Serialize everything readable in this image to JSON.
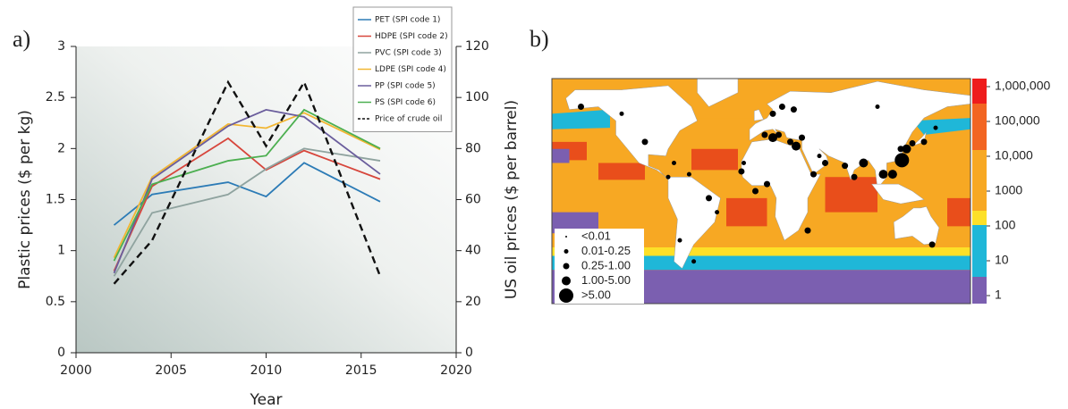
{
  "chart_data": [
    {
      "type": "line",
      "panel_label": "a)",
      "x": [
        2002,
        2004,
        2008,
        2010,
        2012,
        2016
      ],
      "xlim": [
        2000,
        2020
      ],
      "xticks": [
        2000,
        2005,
        2010,
        2015,
        2020
      ],
      "ylim": [
        0,
        3
      ],
      "yticks": [
        0,
        0.5,
        1,
        1.5,
        2,
        2.5,
        3
      ],
      "y2lim": [
        0,
        120
      ],
      "y2ticks": [
        0,
        20,
        40,
        60,
        80,
        100,
        120
      ],
      "xlabel": "Year",
      "ylabel": "Plastic prices ($ per kg)",
      "y2label": "US oil prices ($ per barrel)",
      "legend": "upper-right",
      "series": [
        {
          "name": "PET (SPI code 1)",
          "color": "#2c7bb6",
          "values": [
            1.25,
            1.55,
            1.67,
            1.53,
            1.86,
            1.48
          ]
        },
        {
          "name": "HDPE (SPI code 2)",
          "color": "#d7463c",
          "values": [
            0.8,
            1.63,
            2.1,
            1.79,
            1.98,
            1.7
          ]
        },
        {
          "name": "PVC (SPI code 3)",
          "color": "#8fa39f",
          "values": [
            0.75,
            1.37,
            1.55,
            1.8,
            2.0,
            1.88
          ]
        },
        {
          "name": "LDPE (SPI code 4)",
          "color": "#f2b632",
          "values": [
            0.93,
            1.72,
            2.24,
            2.2,
            2.35,
            1.99
          ]
        },
        {
          "name": "PP (SPI code 5)",
          "color": "#6a5d9c",
          "values": [
            0.78,
            1.7,
            2.22,
            2.38,
            2.31,
            1.75
          ]
        },
        {
          "name": "PS (SPI code 6)",
          "color": "#4caf50",
          "values": [
            0.9,
            1.65,
            1.88,
            1.93,
            2.38,
            2.0
          ]
        },
        {
          "name": "Price of crude oil",
          "color": "#111111",
          "dashed": true,
          "axis": "y2",
          "values": [
            27,
            44,
            106,
            81,
            106,
            30
          ]
        }
      ]
    },
    {
      "type": "map",
      "panel_label": "b)",
      "colorbar_log": true,
      "colorbar_ticks": [
        1,
        10,
        100,
        1000,
        {
          "value": 10000,
          "label": "10,000"
        },
        {
          "value": 100000,
          "label": "100,000"
        },
        {
          "value": 1000000,
          "label": "1,000,000"
        }
      ],
      "size_legend": [
        "<0.01",
        "0.01-0.25",
        "0.25-1.00",
        "1.00-5.00",
        ">5.00"
      ],
      "points": {
        "lon": [
          -155,
          -120,
          -100,
          -80,
          -75,
          -62,
          -45,
          -38,
          -70,
          -58,
          -17,
          -15,
          5,
          -5,
          3,
          10,
          15,
          25,
          30,
          35,
          45,
          50,
          55,
          72,
          80,
          88,
          105,
          113,
          120,
          121,
          125,
          130,
          140,
          147,
          28,
          18,
          10,
          40,
          150,
          100
        ],
        "lat": [
          60,
          55,
          35,
          10,
          20,
          12,
          -5,
          -15,
          -35,
          -50,
          14,
          20,
          5,
          0,
          40,
          38,
          40,
          35,
          32,
          38,
          12,
          25,
          20,
          18,
          10,
          20,
          12,
          12,
          30,
          22,
          30,
          34,
          35,
          -38,
          58,
          60,
          55,
          -28,
          45,
          60
        ],
        "class": [
          2,
          1,
          2,
          1,
          1,
          1,
          2,
          1,
          1,
          1,
          2,
          1,
          2,
          2,
          2,
          3,
          2,
          2,
          3,
          2,
          2,
          1,
          2,
          2,
          2,
          3,
          3,
          3,
          2,
          4,
          3,
          2,
          2,
          2,
          2,
          2,
          2,
          2,
          1,
          1
        ]
      }
    }
  ]
}
